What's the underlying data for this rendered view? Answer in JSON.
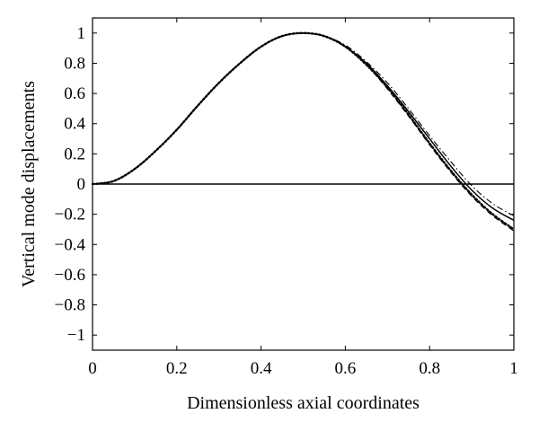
{
  "chart_data": {
    "type": "line",
    "title": "",
    "xlabel": "Dimensionless axial coordinates",
    "ylabel": "Vertical mode displacements",
    "xlim": [
      0,
      1
    ],
    "ylim": [
      -1.1,
      1.1
    ],
    "x_ticks": [
      0,
      0.2,
      0.4,
      0.6,
      0.8,
      1
    ],
    "x_tick_labels": [
      "0",
      "0.2",
      "0.4",
      "0.6",
      "0.8",
      "1"
    ],
    "y_ticks": [
      1,
      0.8,
      0.6,
      0.4,
      0.2,
      0,
      -0.2,
      -0.4,
      -0.6,
      -0.8,
      -1
    ],
    "y_tick_labels": [
      "1",
      "0.8",
      "0.6",
      "0.4",
      "0.2",
      "0",
      "−0.2",
      "−0.4",
      "−0.6",
      "−0.8",
      "−1"
    ],
    "grid": false,
    "legend": false,
    "x": [
      0,
      0.05,
      0.1,
      0.15,
      0.2,
      0.25,
      0.3,
      0.35,
      0.4,
      0.45,
      0.5,
      0.55,
      0.6,
      0.65,
      0.7,
      0.75,
      0.8,
      0.85,
      0.9,
      0.95,
      1.0
    ],
    "series": [
      {
        "style": "solid",
        "color": "#000000",
        "values": [
          0,
          0.02,
          0.1,
          0.22,
          0.36,
          0.52,
          0.67,
          0.8,
          0.91,
          0.98,
          1.0,
          0.98,
          0.91,
          0.8,
          0.65,
          0.48,
          0.3,
          0.12,
          -0.04,
          -0.16,
          -0.24
        ]
      },
      {
        "style": "dashdot",
        "color": "#000000",
        "values": [
          0,
          0.02,
          0.1,
          0.22,
          0.36,
          0.52,
          0.67,
          0.8,
          0.91,
          0.98,
          1.0,
          0.98,
          0.92,
          0.81,
          0.67,
          0.5,
          0.32,
          0.15,
          -0.01,
          -0.13,
          -0.21
        ]
      },
      {
        "style": "dotted",
        "color": "#000000",
        "values": [
          0,
          0.02,
          0.1,
          0.22,
          0.36,
          0.52,
          0.67,
          0.8,
          0.91,
          0.98,
          1.0,
          0.98,
          0.91,
          0.79,
          0.64,
          0.46,
          0.27,
          0.09,
          -0.07,
          -0.2,
          -0.3
        ]
      },
      {
        "style": "dashed",
        "color": "#000000",
        "values": [
          0,
          0.02,
          0.1,
          0.22,
          0.36,
          0.52,
          0.67,
          0.8,
          0.91,
          0.98,
          1.0,
          0.98,
          0.91,
          0.79,
          0.63,
          0.45,
          0.26,
          0.08,
          -0.08,
          -0.21,
          -0.31
        ]
      }
    ],
    "reference_line": {
      "y": 0,
      "style": "solid",
      "color": "#000000"
    }
  }
}
